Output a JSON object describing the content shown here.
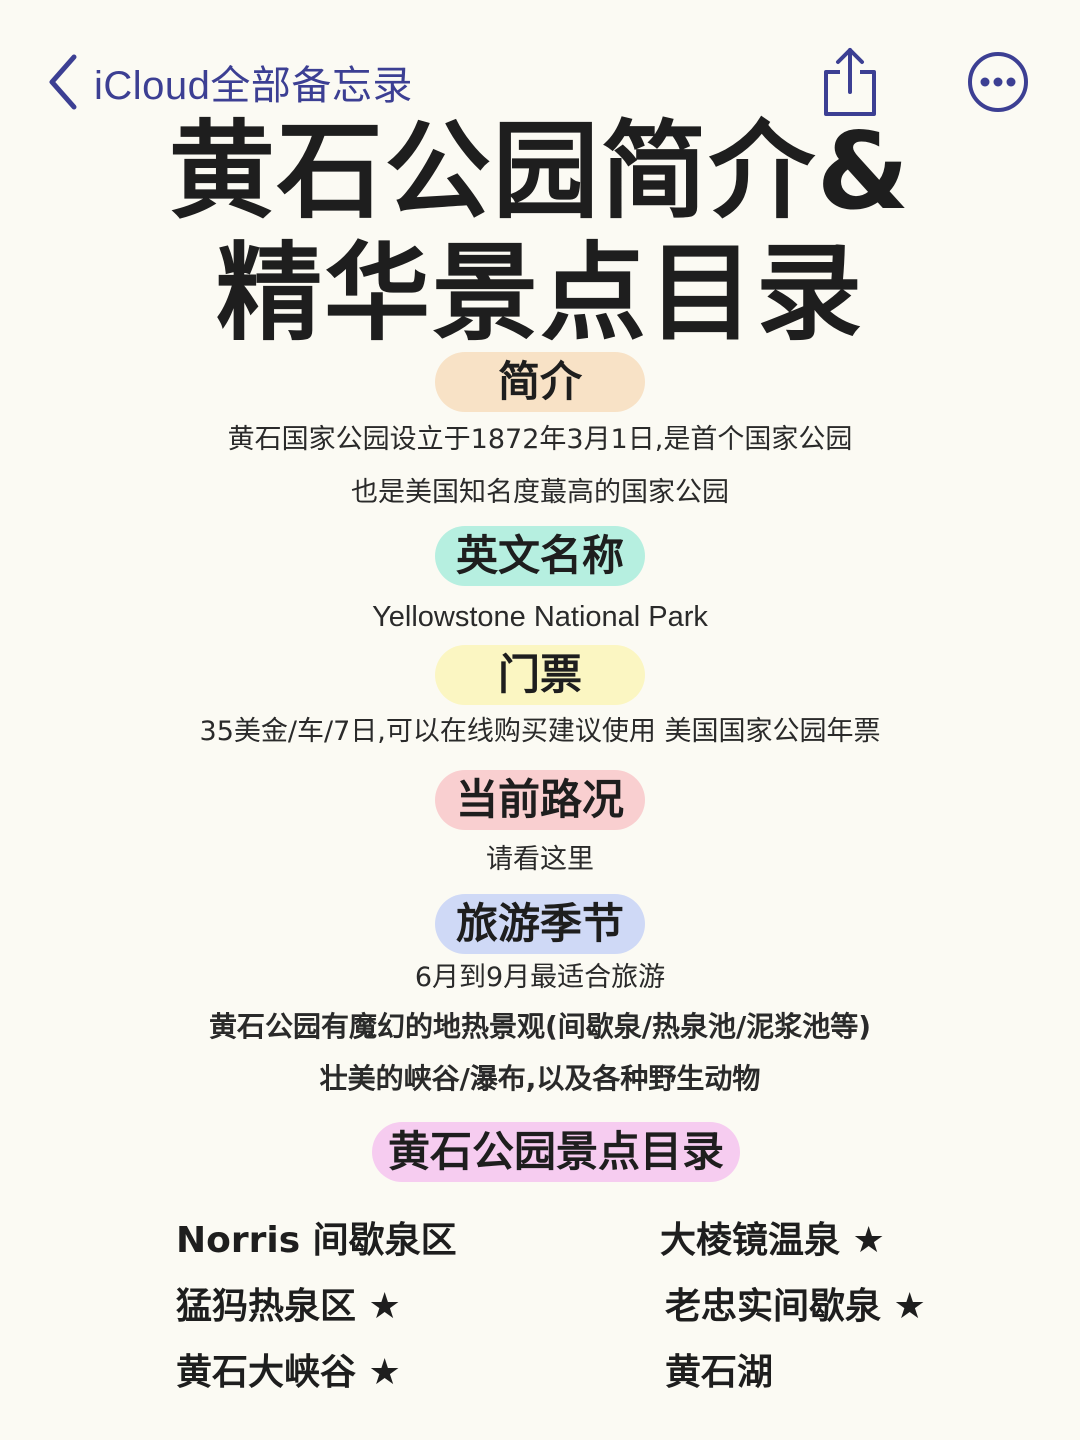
{
  "nav": {
    "back_label": "iCloud全部备忘录",
    "back_icon": "chevron-left-icon",
    "share_icon": "share-icon",
    "more_icon": "more-icon",
    "accent_color": "#3c3f93"
  },
  "title": {
    "line1": "黄石公园简介&",
    "line2": "精华景点目录"
  },
  "sections": {
    "intro": {
      "label": "简介",
      "color": "#f8e2c6",
      "lines": [
        "黄石国家公园设立于1872年3月1日,是首个国家公园",
        "也是美国知名度蕞高的国家公园"
      ]
    },
    "english_name": {
      "label": "英文名称",
      "color": "#b6efe0",
      "value": "Yellowstone National Park"
    },
    "ticket": {
      "label": "门票",
      "color": "#fbf6c2",
      "value": "35美金/车/7日,可以在线购买建议使用 美国国家公园年票"
    },
    "road": {
      "label": "当前路况",
      "color": "#f9cfd0",
      "value": "请看这里"
    },
    "season": {
      "label": "旅游季节",
      "color": "#cfd9f6",
      "lines": [
        "6月到9月最适合旅游",
        "黄石公园有魔幻的地热景观(间歇泉/热泉池/泥浆池等)",
        "壮美的峡谷/瀑布,以及各种野生动物"
      ]
    },
    "attractions": {
      "label": "黄石公园景点目录",
      "color": "#f6ccf0",
      "left": [
        "Norris 间歇泉区",
        "猛犸热泉区 ★",
        "黄石大峡谷 ★"
      ],
      "right": [
        "大棱镜温泉 ★",
        "老忠实间歇泉 ★",
        "黄石湖"
      ]
    }
  }
}
